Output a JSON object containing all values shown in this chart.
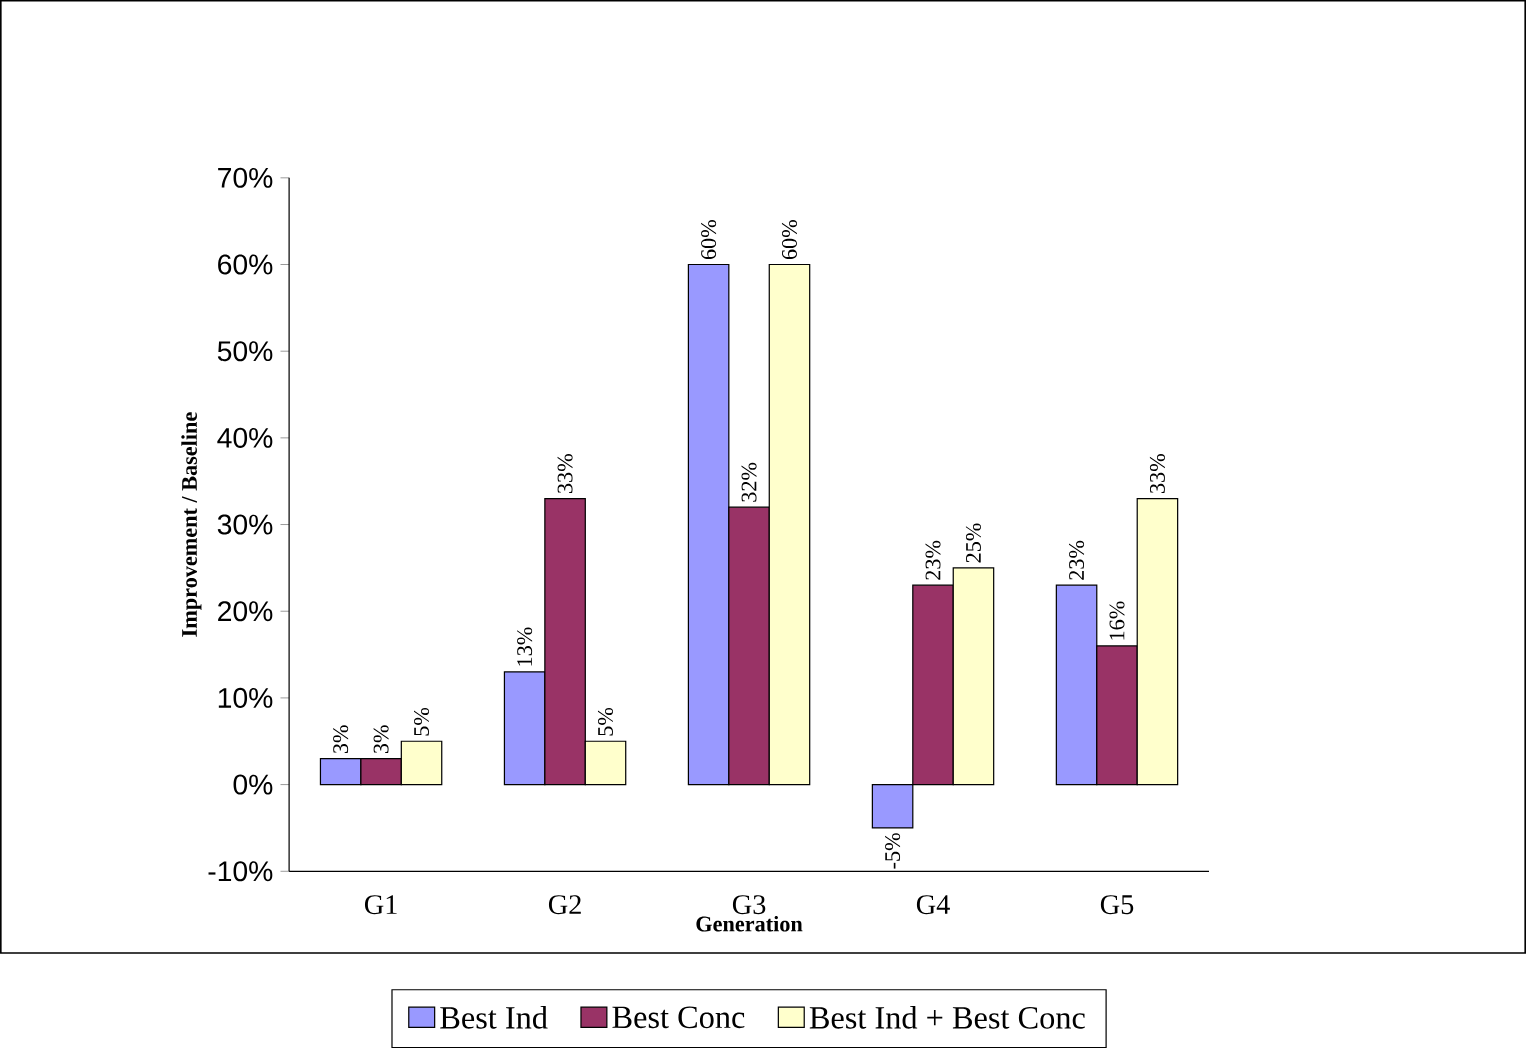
{
  "chart_data": {
    "type": "bar",
    "xlabel": "Generation",
    "ylabel": "Improvement / Baseline",
    "categories": [
      "G1",
      "G2",
      "G3",
      "G4",
      "G5"
    ],
    "series": [
      {
        "name": "Best Ind",
        "color": "#9999ff",
        "values": [
          3,
          13,
          60,
          -5,
          23
        ],
        "value_labels": [
          "3%",
          "13%",
          "60%",
          "-5%",
          "23%"
        ]
      },
      {
        "name": "Best Conc",
        "color": "#993366",
        "values": [
          3,
          33,
          32,
          23,
          16
        ],
        "value_labels": [
          "3%",
          "33%",
          "32%",
          "23%",
          "16%"
        ]
      },
      {
        "name": "Best Ind + Best Conc",
        "color": "#ffffcc",
        "values": [
          5,
          5,
          60,
          25,
          33
        ],
        "value_labels": [
          "5%",
          "5%",
          "60%",
          "25%",
          "33%"
        ]
      }
    ],
    "ylim": [
      -10,
      70
    ],
    "yticks": [
      {
        "value": -10,
        "label": "-10%"
      },
      {
        "value": 0,
        "label": "0%"
      },
      {
        "value": 10,
        "label": "10%"
      },
      {
        "value": 20,
        "label": "20%"
      },
      {
        "value": 30,
        "label": "30%"
      },
      {
        "value": 40,
        "label": "40%"
      },
      {
        "value": 50,
        "label": "50%"
      },
      {
        "value": 60,
        "label": "60%"
      },
      {
        "value": 70,
        "label": "70%"
      }
    ],
    "legend": "bottom"
  }
}
